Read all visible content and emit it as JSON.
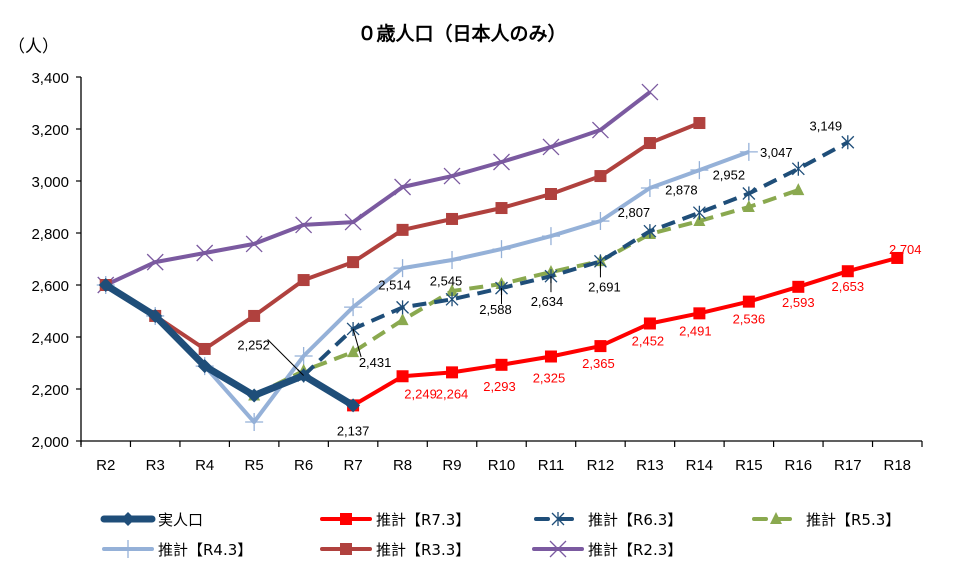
{
  "chart_data": {
    "type": "line",
    "title": "０歳人口（日本人のみ）",
    "ylabel": "（人）",
    "xlabel": "",
    "ylim": [
      2000,
      3400
    ],
    "yticks": [
      2000,
      2200,
      2400,
      2600,
      2800,
      3000,
      3200,
      3400
    ],
    "ytick_labels": [
      "2,000",
      "2,200",
      "2,400",
      "2,600",
      "2,800",
      "3,000",
      "3,200",
      "3,400"
    ],
    "categories": [
      "R2",
      "R3",
      "R4",
      "R5",
      "R6",
      "R7",
      "R8",
      "R9",
      "R10",
      "R11",
      "R12",
      "R13",
      "R14",
      "R15",
      "R16",
      "R17",
      "R18"
    ],
    "grid": false,
    "legend_position": "bottom",
    "series": [
      {
        "name": "推計【R2.3】",
        "color": "#7b5aa0",
        "marker": "x",
        "dash": false,
        "width": 4,
        "values": [
          2600,
          2688,
          2723,
          2758,
          2831,
          2842,
          2977,
          3019,
          3073,
          3131,
          3196,
          3342,
          null,
          null,
          null,
          null,
          null
        ],
        "labels": null
      },
      {
        "name": "推計【R3.3】",
        "color": "#b0413e",
        "marker": "square",
        "dash": false,
        "width": 4,
        "values": [
          2600,
          2481,
          2354,
          2481,
          2619,
          2688,
          2812,
          2854,
          2896,
          2950,
          3019,
          3146,
          3223,
          null,
          null,
          null,
          null
        ],
        "labels": null
      },
      {
        "name": "推計【R4.3】",
        "color": "#95b1d8",
        "marker": "plus",
        "dash": false,
        "width": 4,
        "values": [
          2600,
          2481,
          2288,
          2073,
          2327,
          2515,
          2665,
          2696,
          2738,
          2788,
          2846,
          2973,
          3042,
          3112,
          null,
          null,
          null
        ],
        "labels": null
      },
      {
        "name": "推計【R5.3】",
        "color": "#8aa94f",
        "marker": "triangle",
        "dash": true,
        "width": 4,
        "values": [
          null,
          null,
          null,
          2175,
          2270,
          2342,
          2465,
          2577,
          2604,
          2650,
          2692,
          2796,
          2846,
          2900,
          2965,
          null,
          null
        ],
        "labels": null
      },
      {
        "name": "推計【R6.3】",
        "color": "#1f4e79",
        "marker": "star",
        "dash": true,
        "width": 4,
        "values": [
          null,
          null,
          null,
          null,
          2252,
          2431,
          2514,
          2545,
          2588,
          2634,
          2691,
          2807,
          2878,
          2952,
          3047,
          3149,
          null
        ],
        "labels": [
          null,
          null,
          null,
          null,
          null,
          "2,431",
          "2,514",
          "2,545",
          "2,588",
          "2,634",
          "2,691",
          "2,807",
          "2,878",
          "2,952",
          "3,047",
          "3,149",
          null
        ],
        "label_color": "#000000"
      },
      {
        "name": "推計【R7.3】",
        "color": "#ff0000",
        "marker": "square",
        "dash": false,
        "width": 4,
        "values": [
          null,
          null,
          null,
          null,
          null,
          2137,
          2249,
          2264,
          2293,
          2325,
          2365,
          2452,
          2491,
          2536,
          2593,
          2653,
          2704
        ],
        "labels": [
          null,
          null,
          null,
          null,
          null,
          null,
          "2,249",
          "2,264",
          "2,293",
          "2,325",
          "2,365",
          "2,452",
          "2,491",
          "2,536",
          "2,593",
          "2,653",
          "2,704"
        ],
        "label_color": "#ff0000"
      },
      {
        "name": "実人口",
        "color": "#1f4e79",
        "marker": "diamond",
        "dash": false,
        "width": 7,
        "values": [
          2600,
          2481,
          2288,
          2175,
          2252,
          2137,
          null,
          null,
          null,
          null,
          null,
          null,
          null,
          null,
          null,
          null,
          null
        ],
        "labels": [
          null,
          null,
          null,
          null,
          "2,252",
          "2,137",
          null,
          null,
          null,
          null,
          null,
          null,
          null,
          null,
          null,
          null,
          null
        ],
        "label_color": "#000000"
      }
    ],
    "legend_order": [
      "実人口",
      "推計【R7.3】",
      "推計【R6.3】",
      "推計【R5.3】",
      "推計【R4.3】",
      "推計【R3.3】",
      "推計【R2.3】"
    ]
  }
}
